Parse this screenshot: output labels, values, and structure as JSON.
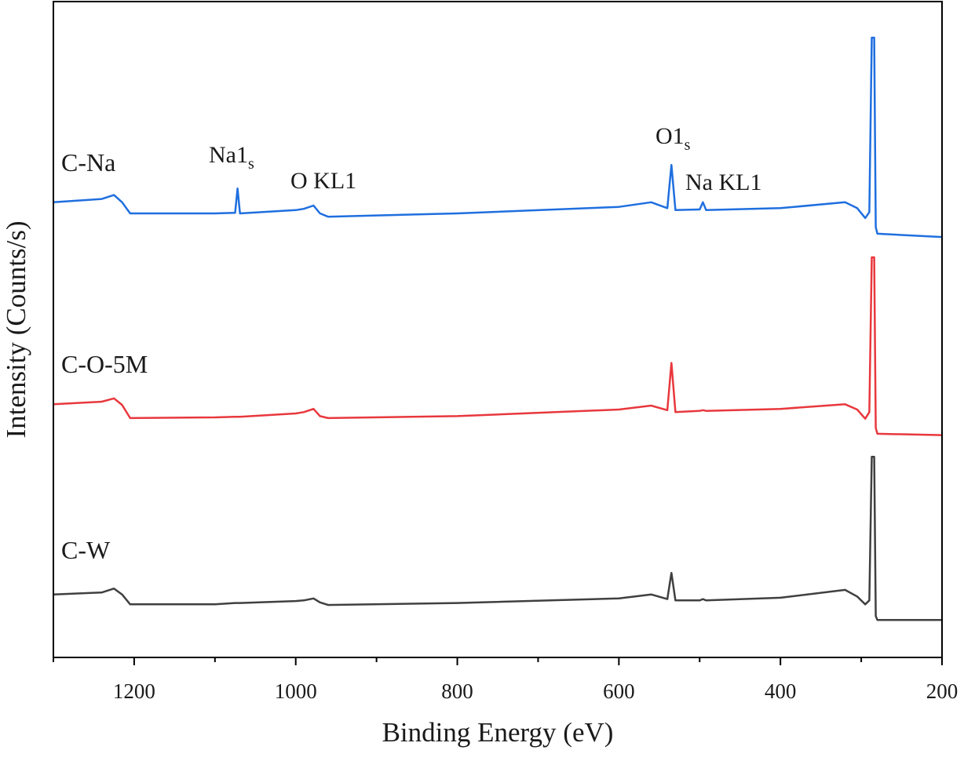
{
  "chart_data": {
    "type": "line",
    "x_label": "Binding Energy (eV)",
    "y_label": "Intensity (Counts/s)",
    "x": [
      1300,
      1240,
      1225,
      1215,
      1205,
      1100,
      1075,
      1072,
      1069,
      1000,
      990,
      978,
      970,
      960,
      800,
      600,
      560,
      540,
      535,
      530,
      500,
      496,
      492,
      400,
      320,
      305,
      295,
      290,
      287,
      284,
      282,
      280,
      200
    ],
    "series": [
      {
        "name": "C-Na",
        "color": "#1f6fdf",
        "values": [
          69.4,
          69.9,
          70.5,
          69.4,
          67.7,
          67.7,
          67.8,
          71.5,
          67.7,
          68.2,
          68.4,
          68.9,
          67.7,
          67.2,
          67.7,
          68.7,
          69.4,
          68.5,
          75.1,
          68.2,
          68.3,
          69.4,
          68.2,
          68.5,
          69.4,
          68.5,
          67.0,
          67.9,
          94.5,
          94.5,
          65.6,
          64.6,
          64.1
        ]
      },
      {
        "name": "C-O-5M",
        "color": "#e8383d",
        "values": [
          38.6,
          39.0,
          39.5,
          38.5,
          36.5,
          36.6,
          36.7,
          36.7,
          36.7,
          37.2,
          37.4,
          37.9,
          36.8,
          36.5,
          36.8,
          37.8,
          38.4,
          37.7,
          44.9,
          37.4,
          37.6,
          37.7,
          37.6,
          37.9,
          38.6,
          37.8,
          36.4,
          37.4,
          61.0,
          61.0,
          35.0,
          34.1,
          33.9
        ]
      },
      {
        "name": "C-W",
        "color": "#404040",
        "values": [
          9.6,
          9.9,
          10.5,
          9.6,
          8.1,
          8.1,
          8.3,
          8.3,
          8.3,
          8.6,
          8.7,
          9.0,
          8.4,
          8.0,
          8.3,
          9.0,
          9.6,
          8.9,
          12.9,
          8.7,
          8.7,
          8.9,
          8.7,
          9.1,
          10.3,
          9.3,
          8.1,
          8.7,
          30.6,
          30.6,
          6.3,
          5.7,
          5.7
        ]
      }
    ],
    "annotations": [
      {
        "text": "Na1",
        "subscript": "s"
      },
      {
        "text": "O KL1"
      },
      {
        "text": "O1",
        "subscript": "s"
      },
      {
        "text": "Na KL1"
      }
    ],
    "xlim": [
      1300,
      200
    ],
    "xticks": [
      1200,
      1000,
      800,
      600,
      400,
      200
    ],
    "xminorticks": [
      1300,
      1100,
      900,
      700,
      500,
      300
    ],
    "ylim": [
      0,
      100
    ]
  }
}
